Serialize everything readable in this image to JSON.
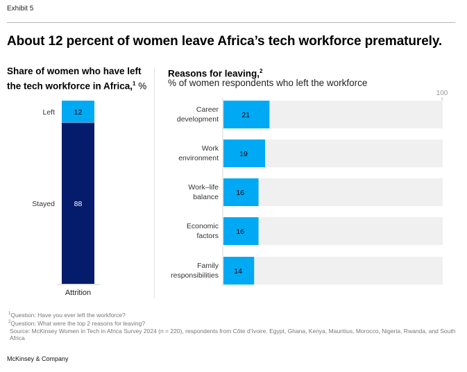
{
  "exhibit_label": "Exhibit 5",
  "headline": "About 12 percent of women leave Africa’s tech workforce prematurely.",
  "left_panel": {
    "title": "Share of women who have left the tech workforce in Africa,",
    "title_sup": "1",
    "unit": "%"
  },
  "right_panel": {
    "title": "Reasons for leaving,",
    "title_sup": "2",
    "subtitle": "% of women respondents who left the workforce"
  },
  "chart_data": [
    {
      "type": "bar",
      "stacked": true,
      "orientation": "vertical",
      "title": "Share of women who have left the tech workforce in Africa, %",
      "categories": [
        "Attrition"
      ],
      "series": [
        {
          "name": "Left",
          "values": [
            12
          ],
          "color": "#00A9F4"
        },
        {
          "name": "Stayed",
          "values": [
            88
          ],
          "color": "#051C6C"
        }
      ],
      "ylim": [
        0,
        100
      ],
      "grid": false
    },
    {
      "type": "bar",
      "orientation": "horizontal",
      "title": "Reasons for leaving, % of women respondents who left the workforce",
      "categories": [
        "Career development",
        "Work environment",
        "Work–life balance",
        "Economic factors",
        "Family responsibilities"
      ],
      "category_lines": [
        [
          "Career",
          "development"
        ],
        [
          "Work",
          "environment"
        ],
        [
          "Work–life",
          "balance"
        ],
        [
          "Economic",
          "factors"
        ],
        [
          "Family",
          "responsibilities"
        ]
      ],
      "values": [
        21,
        19,
        16,
        16,
        14
      ],
      "xlim": [
        0,
        100
      ],
      "axis_max_label": "100",
      "bar_color": "#00A9F4",
      "track_color": "#F0F0F0",
      "grid": false
    }
  ],
  "footnotes": {
    "note1": "Question: Have you ever left the workforce?",
    "note2": "Question: What were the top 2 reasons for leaving?",
    "source": "Source: McKinsey Women in Tech in Africa Survey 2024 (n = 220), respondents from Côte d’Ivoire, Egypt, Ghana, Kenya, Mauritius, Morocco, Nigeria, Rwanda, and South Africa"
  },
  "brand": "McKinsey & Company"
}
